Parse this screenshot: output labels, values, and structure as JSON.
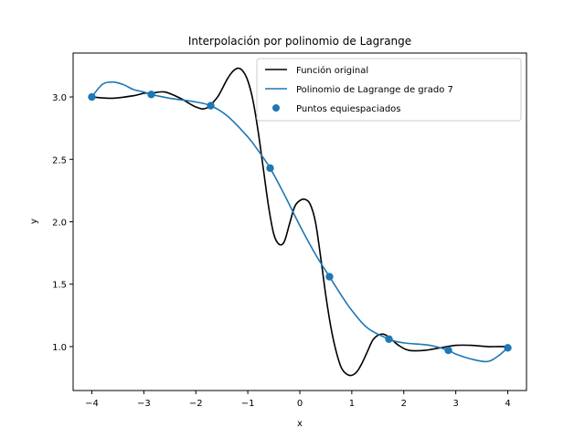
{
  "chart_data": {
    "type": "line",
    "title": "Interpolación por polinomio de Lagrange",
    "xlabel": "x",
    "ylabel": "y",
    "xlim": [
      -4.36,
      4.36
    ],
    "ylim": [
      0.648,
      3.352
    ],
    "xticks": [
      -4,
      -3,
      -2,
      -1,
      0,
      1,
      2,
      3,
      4
    ],
    "xtick_labels": [
      "−4",
      "−3",
      "−2",
      "−1",
      "0",
      "1",
      "2",
      "3",
      "4"
    ],
    "yticks": [
      1.0,
      1.5,
      2.0,
      2.5,
      3.0
    ],
    "ytick_labels": [
      "1.0",
      "1.5",
      "2.0",
      "2.5",
      "3.0"
    ],
    "grid": false,
    "legend_position": "upper right",
    "series": [
      {
        "name": "Función original",
        "kind": "line",
        "color": "#000000",
        "x": [
          -4.0,
          -3.6,
          -3.2,
          -3.0,
          -2.86,
          -2.6,
          -2.3,
          -2.0,
          -1.8,
          -1.6,
          -1.5,
          -1.4,
          -1.3,
          -1.2,
          -1.1,
          -1.0,
          -0.9,
          -0.8,
          -0.7,
          -0.6,
          -0.5,
          -0.4,
          -0.3,
          -0.2,
          -0.1,
          0.0,
          0.1,
          0.2,
          0.3,
          0.4,
          0.5,
          0.6,
          0.7,
          0.8,
          0.9,
          1.0,
          1.1,
          1.2,
          1.3,
          1.4,
          1.5,
          1.6,
          1.7,
          1.9,
          2.1,
          2.4,
          2.7,
          3.0,
          3.3,
          3.6,
          3.8,
          4.0
        ],
        "y": [
          3.0,
          2.99,
          3.01,
          3.03,
          3.03,
          3.04,
          2.99,
          2.92,
          2.91,
          2.99,
          3.06,
          3.14,
          3.2,
          3.23,
          3.21,
          3.13,
          2.97,
          2.72,
          2.42,
          2.12,
          1.9,
          1.82,
          1.84,
          1.98,
          2.12,
          2.17,
          2.18,
          2.14,
          2.0,
          1.72,
          1.41,
          1.15,
          0.96,
          0.83,
          0.78,
          0.77,
          0.8,
          0.87,
          0.96,
          1.05,
          1.09,
          1.1,
          1.08,
          1.01,
          0.97,
          0.97,
          0.99,
          1.01,
          1.01,
          1.0,
          1.0,
          1.0
        ]
      },
      {
        "name": "Polinomio de Lagrange de grado 7",
        "kind": "line",
        "color": "#1f77b4",
        "x": [
          -4.0,
          -3.8,
          -3.6,
          -3.4,
          -3.2,
          -3.0,
          -2.857,
          -2.5,
          -2.0,
          -1.714,
          -1.4,
          -1.0,
          -0.8,
          -0.571,
          -0.3,
          0.0,
          0.3,
          0.571,
          0.8,
          1.0,
          1.3,
          1.714,
          2.0,
          2.5,
          2.857,
          3.0,
          3.3,
          3.6,
          3.8,
          4.0
        ],
        "y": [
          3.0,
          3.1,
          3.12,
          3.1,
          3.06,
          3.04,
          3.02,
          2.99,
          2.96,
          2.93,
          2.85,
          2.68,
          2.57,
          2.43,
          2.22,
          1.97,
          1.74,
          1.56,
          1.41,
          1.29,
          1.15,
          1.06,
          1.03,
          1.01,
          0.97,
          0.94,
          0.9,
          0.88,
          0.92,
          0.99
        ]
      },
      {
        "name": "Puntos equiespaciados",
        "kind": "scatter",
        "color": "#1f77b4",
        "x": [
          -4.0,
          -2.857,
          -1.714,
          -0.571,
          0.571,
          1.714,
          2.857,
          4.0
        ],
        "y": [
          3.0,
          3.02,
          2.93,
          2.43,
          1.56,
          1.06,
          0.97,
          0.99
        ]
      }
    ]
  }
}
